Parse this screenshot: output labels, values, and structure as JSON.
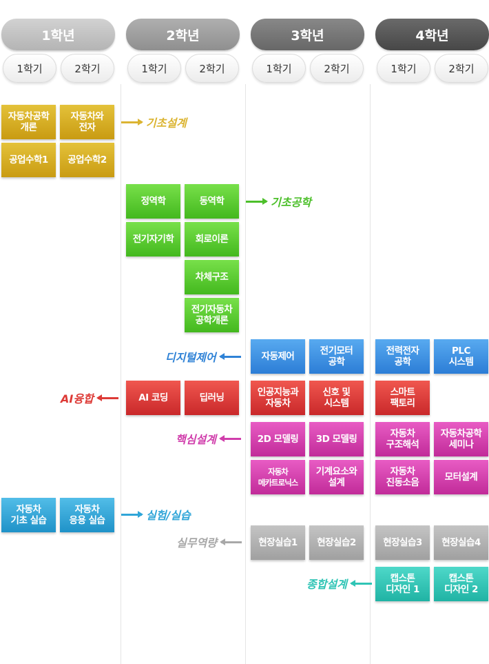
{
  "years": [
    "1학년",
    "2학년",
    "3학년",
    "4학년"
  ],
  "semesters": [
    "1학기",
    "2학기"
  ],
  "colors": {
    "yellow": "#d4ab1f",
    "green": "#55c42b",
    "blue": "#3a8ee0",
    "red": "#dd3a36",
    "pink": "#d03dab",
    "gray": "#b2b2b2",
    "teal": "#2fc4b5",
    "sky": "#2fa5d8"
  },
  "categories": {
    "basic_design": "기초설계",
    "basic_engineering": "기초공학",
    "digital_control": "디지털제어",
    "ai_fusion": "AI융합",
    "core_design": "핵심설계",
    "lab_practice": "실험/실습",
    "practical_skills": "실무역량",
    "capstone_design": "종합설계"
  },
  "courses": {
    "y1_intro_auto_eng": "자동차공학\n개론",
    "y1_auto_electronics": "자동차와\n전자",
    "y1_eng_math1": "공업수학1",
    "y1_eng_math2": "공업수학2",
    "y2_statics": "정역학",
    "y2_dynamics": "동역학",
    "y2_electromagnetics": "전기자기학",
    "y2_circuit_theory": "회로이론",
    "y2_chassis_structure": "차체구조",
    "y2_intro_ev_eng": "전기자동차\n공학개론",
    "y3_auto_control": "자동제어",
    "y3_motor_eng": "전기모터\n공학",
    "y4_power_electronics": "전력전자\n공학",
    "y4_plc": "PLC\n시스템",
    "y2_ai_coding": "AI 코딩",
    "y2_deep_learning": "딥러닝",
    "y3_ai_vehicle": "인공지능과\n자동차",
    "y3_signals_systems": "신호 및\n시스템",
    "y4_smart_factory": "스마트\n팩토리",
    "y3_2d_modeling": "2D 모델링",
    "y3_3d_modeling": "3D 모델링",
    "y4_structural_analysis": "자동차\n구조해석",
    "y4_seminar": "자동차공학\n세미나",
    "y3_mechatronics": "자동차\n메카트로닉스",
    "y3_machine_elements": "기계요소와\n설계",
    "y4_nvh": "자동차\n진동소음",
    "y4_motor_design": "모터설계",
    "y1_basic_lab": "자동차\n기초 실습",
    "y1_applied_lab": "자동차\n응용 실습",
    "y3_field1": "현장실습1",
    "y3_field2": "현장실습2",
    "y4_field3": "현장실습3",
    "y4_field4": "현장실습4",
    "y4_capstone1": "캡스톤\n디자인 1",
    "y4_capstone2": "캡스톤\n디자인 2"
  }
}
